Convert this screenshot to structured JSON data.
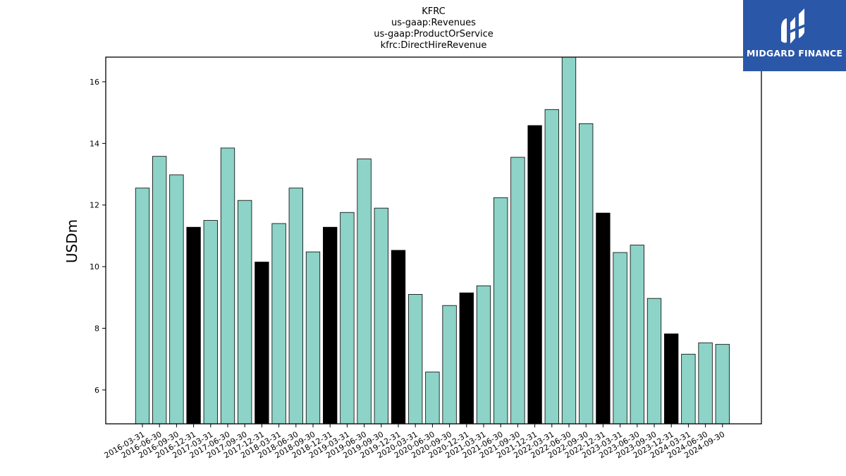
{
  "brand": {
    "name": "MIDGARD FINANCE",
    "color": "#2b57a8"
  },
  "chart_data": {
    "type": "bar",
    "title_lines": [
      "KFRC",
      "us-gaap:Revenues",
      "us-gaap:ProductOrService",
      "kfrc:DirectHireRevenue"
    ],
    "xlabel": "",
    "ylabel": "USDm",
    "ylim": [
      4.9,
      16.8
    ],
    "yticks": [
      6,
      8,
      10,
      12,
      14,
      16
    ],
    "grid": false,
    "colors": {
      "quarter": "#8dd3c7",
      "year_end": "#000000",
      "edge": "#000000"
    },
    "categories": [
      "2016-03-31",
      "2016-06-30",
      "2016-09-30",
      "2016-12-31",
      "2017-03-31",
      "2017-06-30",
      "2017-09-30",
      "2017-12-31",
      "2018-03-31",
      "2018-06-30",
      "2018-09-30",
      "2018-12-31",
      "2019-03-31",
      "2019-06-30",
      "2019-09-30",
      "2019-12-31",
      "2020-03-31",
      "2020-06-30",
      "2020-09-30",
      "2020-12-31",
      "2021-03-31",
      "2021-06-30",
      "2021-09-30",
      "2021-12-31",
      "2022-03-31",
      "2022-06-30",
      "2022-09-30",
      "2022-12-31",
      "2023-03-31",
      "2023-06-30",
      "2023-09-30",
      "2023-12-31",
      "2024-03-31",
      "2024-06-30",
      "2024-09-30"
    ],
    "values": [
      12.55,
      13.58,
      12.98,
      11.28,
      11.5,
      13.85,
      12.15,
      10.15,
      11.4,
      12.55,
      10.48,
      11.28,
      11.76,
      13.5,
      11.9,
      10.53,
      9.1,
      6.58,
      8.74,
      9.15,
      9.38,
      12.24,
      13.55,
      14.58,
      15.1,
      16.85,
      14.64,
      11.74,
      10.46,
      10.7,
      8.97,
      7.82,
      7.16,
      7.53,
      7.48
    ]
  }
}
